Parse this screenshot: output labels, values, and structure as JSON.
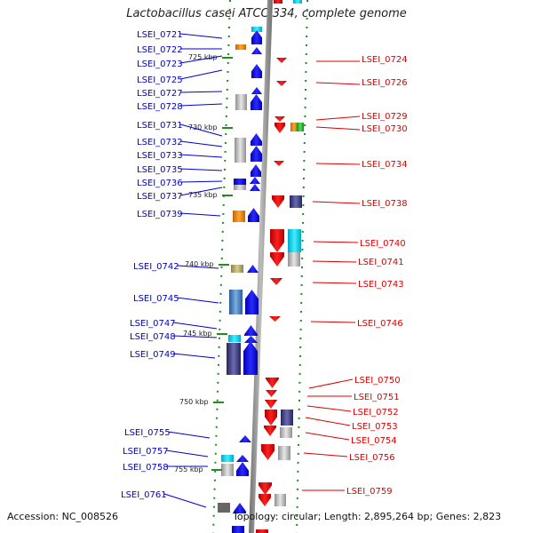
{
  "title": "Lactobacillus casei ATCC 334, complete genome",
  "footer": {
    "accession": "Accession: NC_008526",
    "topology": "Topology: circular; Length: 2,895,264 bp; Genes: 2,823"
  },
  "colors": {
    "left_label": "#0000cc",
    "right_label": "#dd0000",
    "forward_gene": "#1010e0",
    "reverse_gene": "#ee1010",
    "backbone": "#8a8a8a",
    "track_dots": "#228b22"
  },
  "scale_ticks": [
    "725 kbp",
    "730 kbp",
    "735 kbp",
    "740 kbp",
    "745 kbp",
    "750 kbp",
    "755 kbp"
  ],
  "left_labels": [
    "LSEI_0721",
    "LSEI_0722",
    "LSEI_0723",
    "LSEI_0725",
    "LSEI_0727",
    "LSEI_0728",
    "LSEI_0731",
    "LSEI_0732",
    "LSEI_0733",
    "LSEI_0735",
    "LSEI_0736",
    "LSEI_0737",
    "LSEI_0739",
    "LSEI_0742",
    "LSEI_0745",
    "LSEI_0747",
    "LSEI_0748",
    "LSEI_0749",
    "LSEI_0755",
    "LSEI_0757",
    "LSEI_0758",
    "LSEI_0761"
  ],
  "right_labels": [
    "LSEI_0724",
    "LSEI_0726",
    "LSEI_0729",
    "LSEI_0730",
    "LSEI_0734",
    "LSEI_0738",
    "LSEI_0740",
    "LSEI_0741",
    "LSEI_0743",
    "LSEI_0746",
    "LSEI_0750",
    "LSEI_0751",
    "LSEI_0752",
    "LSEI_0753",
    "LSEI_0754",
    "LSEI_0756",
    "LSEI_0759"
  ]
}
